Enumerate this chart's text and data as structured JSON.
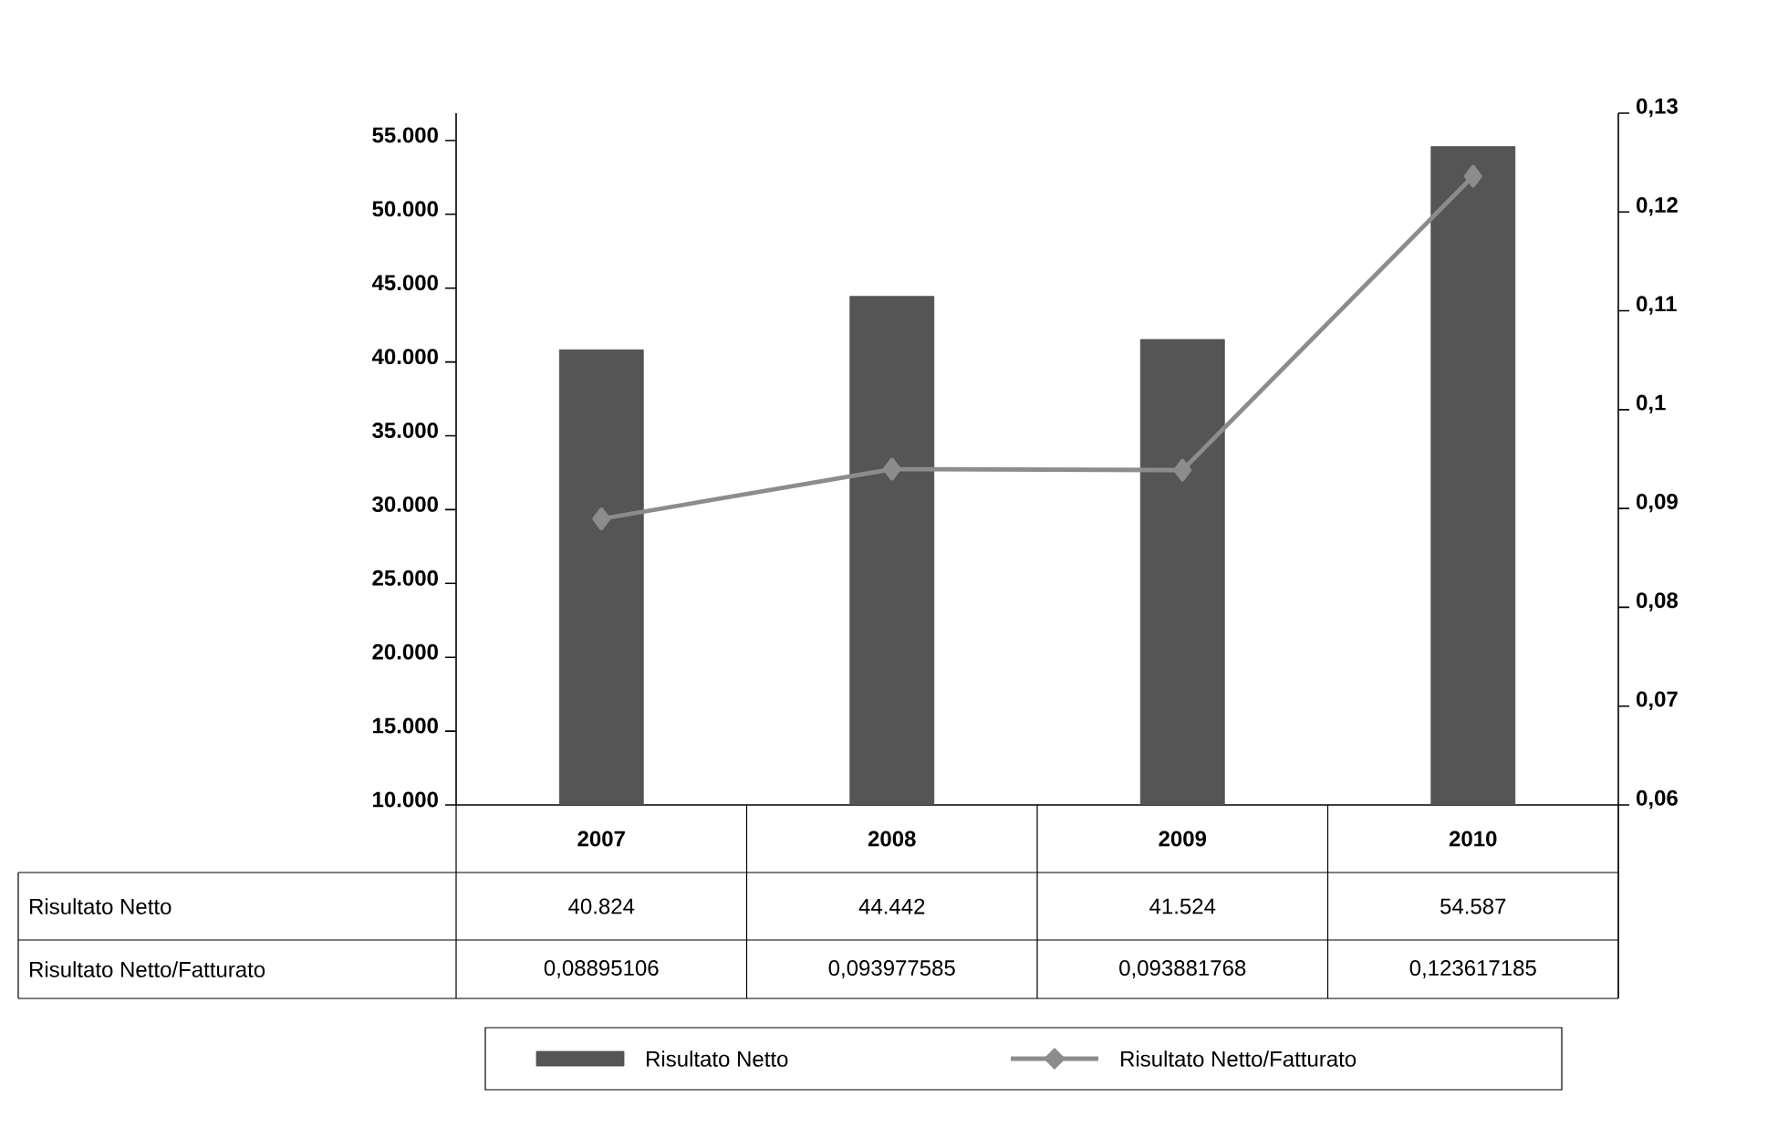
{
  "chart_data": {
    "type": "bar",
    "categories": [
      "2007",
      "2008",
      "2009",
      "2010"
    ],
    "series": [
      {
        "name": "Risultato Netto",
        "color": "#555555",
        "values": [
          40824,
          44442,
          41524,
          54587
        ],
        "value_labels": [
          "40.824",
          "44.442",
          "41.524",
          "54.587"
        ]
      },
      {
        "name": "Risultato Netto/Fatturato",
        "type": "line",
        "axis": "y2",
        "color": "#8c8c8c",
        "marker": "diamond",
        "values": [
          0.08895106,
          0.093977585,
          0.093881768,
          0.123617185
        ],
        "value_labels": [
          "0,08895106",
          "0,093977585",
          "0,093881768",
          "0,123617185"
        ]
      }
    ],
    "ylim": [
      10000,
      56850
    ],
    "yticks": [
      {
        "value": 10000,
        "label": "10.000"
      },
      {
        "value": 15000,
        "label": "15.000"
      },
      {
        "value": 20000,
        "label": "20.000"
      },
      {
        "value": 25000,
        "label": "25.000"
      },
      {
        "value": 30000,
        "label": "30.000"
      },
      {
        "value": 35000,
        "label": "35.000"
      },
      {
        "value": 40000,
        "label": "40.000"
      },
      {
        "value": 45000,
        "label": "45.000"
      },
      {
        "value": 50000,
        "label": "50.000"
      },
      {
        "value": 55000,
        "label": "55.000"
      }
    ],
    "y2lim": [
      0.06,
      0.13
    ],
    "y2ticks": [
      {
        "value": 0.06,
        "label": "0,06"
      },
      {
        "value": 0.07,
        "label": "0,07"
      },
      {
        "value": 0.08,
        "label": "0,08"
      },
      {
        "value": 0.09,
        "label": "0,09"
      },
      {
        "value": 0.1,
        "label": "0,1"
      },
      {
        "value": 0.11,
        "label": "0,11"
      },
      {
        "value": 0.12,
        "label": "0,12"
      },
      {
        "value": 0.13,
        "label": "0,13"
      }
    ],
    "legend": "bottom"
  }
}
